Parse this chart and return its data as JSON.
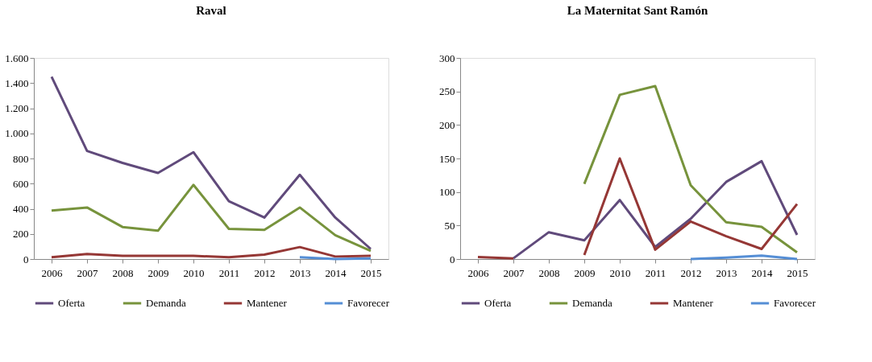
{
  "chart_data": [
    {
      "type": "line",
      "title": "Raval",
      "categories": [
        "2006",
        "2007",
        "2008",
        "2009",
        "2010",
        "2011",
        "2012",
        "2013",
        "2014",
        "2015"
      ],
      "ylim": [
        0,
        1600
      ],
      "yticks": [
        0,
        200,
        400,
        600,
        800,
        {
          "value": 1000,
          "label": "1.000"
        },
        {
          "value": 1200,
          "label": "1.200"
        },
        {
          "value": 1400,
          "label": "1.400"
        },
        {
          "value": 1600,
          "label": "1.600"
        }
      ],
      "grid": false,
      "legend": "bottom",
      "line_style": "solid",
      "marker": "none",
      "series": [
        {
          "name": "Oferta",
          "color": "#604a7b",
          "values": [
            1450,
            860,
            765,
            685,
            850,
            460,
            330,
            670,
            330,
            80
          ]
        },
        {
          "name": "Demanda",
          "color": "#77933c",
          "values": [
            385,
            410,
            255,
            225,
            590,
            240,
            232,
            410,
            190,
            65
          ]
        },
        {
          "name": "Mantener",
          "color": "#953735",
          "values": [
            15,
            40,
            25,
            25,
            25,
            15,
            35,
            95,
            20,
            25
          ]
        },
        {
          "name": "Favorecer",
          "color": "#558ed5",
          "values": [
            null,
            null,
            null,
            null,
            null,
            null,
            null,
            15,
            0,
            5
          ]
        }
      ]
    },
    {
      "type": "line",
      "title": "La Maternitat Sant Ramón",
      "categories": [
        "2006",
        "2007",
        "2008",
        "2009",
        "2010",
        "2011",
        "2012",
        "2013",
        "2014",
        "2015"
      ],
      "ylim": [
        0,
        300
      ],
      "yticks": [
        0,
        50,
        100,
        150,
        200,
        250,
        300
      ],
      "grid": false,
      "legend": "bottom",
      "line_style": "solid",
      "marker": "none",
      "series": [
        {
          "name": "Oferta",
          "color": "#604a7b",
          "values": [
            null,
            1,
            40,
            28,
            88,
            18,
            60,
            115,
            146,
            36
          ]
        },
        {
          "name": "Demanda",
          "color": "#77933c",
          "values": [
            null,
            null,
            null,
            112,
            245,
            258,
            110,
            55,
            48,
            10
          ]
        },
        {
          "name": "Mantener",
          "color": "#953735",
          "values": [
            3,
            1,
            null,
            6,
            150,
            14,
            56,
            34,
            15,
            82
          ]
        },
        {
          "name": "Favorecer",
          "color": "#558ed5",
          "values": [
            null,
            null,
            null,
            null,
            null,
            null,
            0,
            2,
            5,
            0
          ]
        }
      ]
    }
  ]
}
